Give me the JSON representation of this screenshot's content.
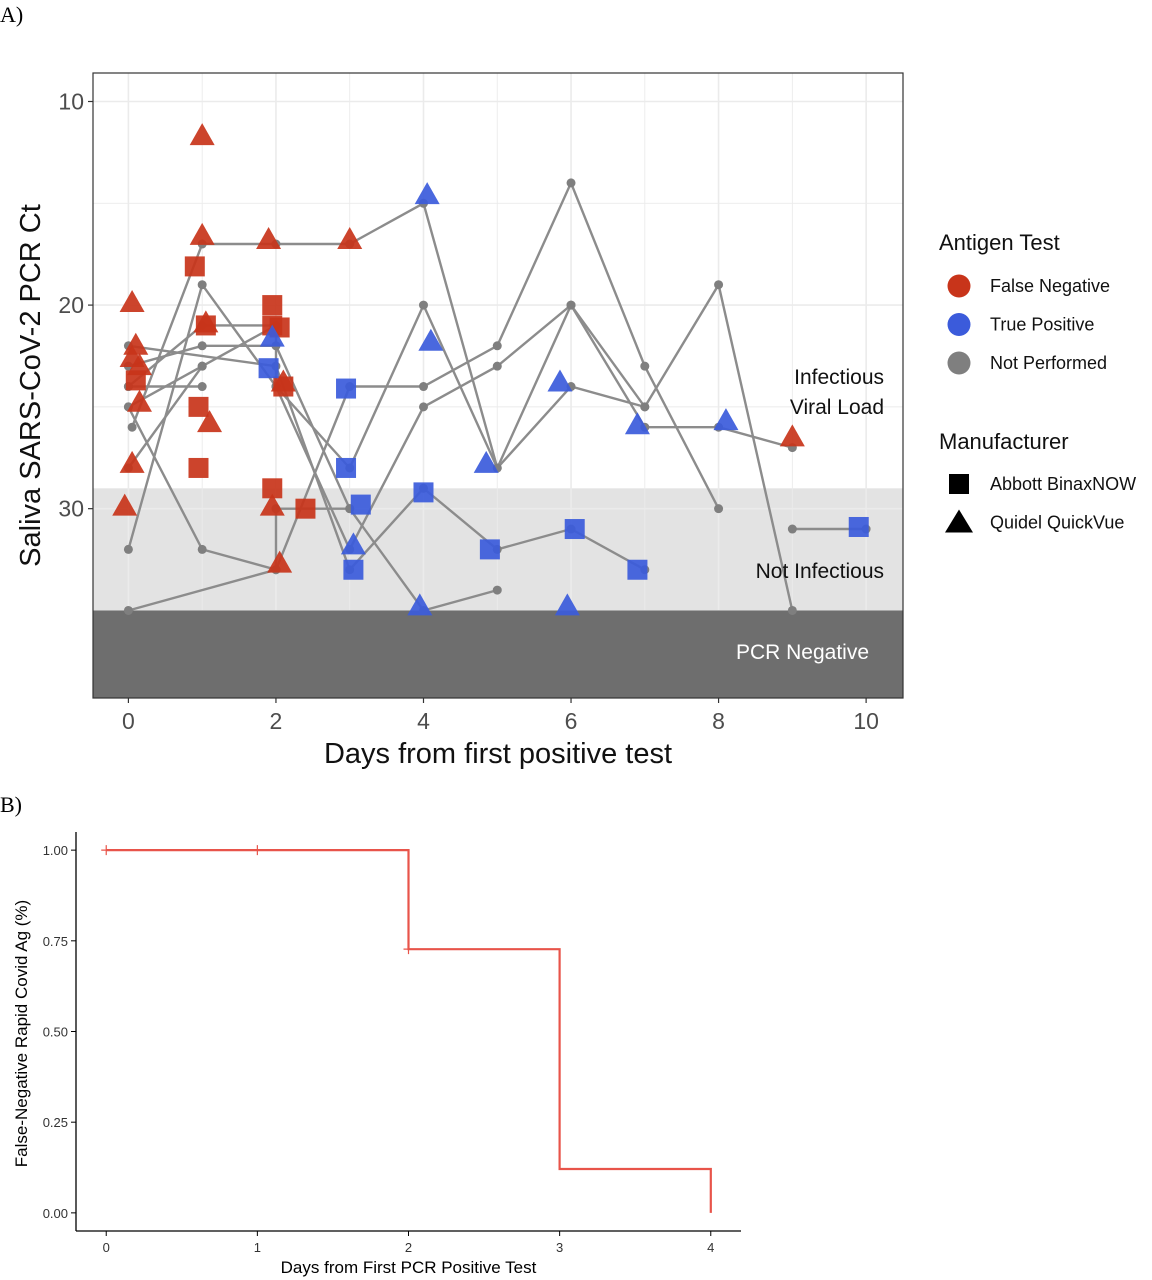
{
  "panel_labels": {
    "a": "A)",
    "b": "B)"
  },
  "colors": {
    "false_negative": "#C8341A",
    "true_positive": "#3B5BDB",
    "not_performed": "#7F7F7F",
    "line": "#8C8C8C",
    "km_curve": "#E8544A",
    "not_infectious_band": "#E3E3E3",
    "pcr_negative_band": "#6E6E6E"
  },
  "chart_data": [
    {
      "type": "scatter",
      "xlabel": "Days from first positive test",
      "ylabel": "Saliva SARS-CoV-2 PCR Ct",
      "xlim": [
        -0.48,
        10.5
      ],
      "ylim": [
        8.6,
        39.3
      ],
      "y_reversed": true,
      "x_ticks": [
        "0",
        "2",
        "4",
        "6",
        "8",
        "10"
      ],
      "x_tick_values": [
        0,
        2,
        4,
        6,
        8,
        10
      ],
      "y_ticks": [
        "10",
        "20",
        "30"
      ],
      "y_tick_values": [
        10,
        20,
        30
      ],
      "grid": true,
      "legend_position": "right",
      "regions": [
        {
          "label": "Infectious Viral Load",
          "label_lines": [
            "Infectious",
            "Viral Load"
          ],
          "from": 8.6,
          "to": 29
        },
        {
          "label": "Not Infectious",
          "from": 29,
          "to": 35
        },
        {
          "label": "PCR Negative",
          "from": 35,
          "to": 39.3
        }
      ],
      "legend": {
        "color_title": "Antigen Test",
        "color_entries": [
          {
            "label": "False Negative",
            "key": "false_negative"
          },
          {
            "label": "True Positive",
            "key": "true_positive"
          },
          {
            "label": "Not Performed",
            "key": "not_performed"
          }
        ],
        "shape_title": "Manufacturer",
        "shape_entries": [
          {
            "label": "Abbott BinaxNOW",
            "shape": "square"
          },
          {
            "label": "Quidel QuickVue",
            "shape": "triangle"
          }
        ]
      },
      "series": [
        {
          "points": [
            [
              0,
              32
            ],
            [
              1,
              19
            ],
            [
              2,
              24
            ],
            [
              3,
              28
            ],
            [
              4,
              20
            ],
            [
              5,
              28
            ],
            [
              6,
              24
            ],
            [
              7,
              25
            ]
          ]
        },
        {
          "points": [
            [
              0.05,
              26
            ],
            [
              1,
              17
            ],
            [
              2,
              17
            ],
            [
              3,
              17
            ],
            [
              4,
              15
            ],
            [
              5,
              28
            ],
            [
              6,
              20
            ],
            [
              7,
              26
            ],
            [
              8,
              26
            ],
            [
              9,
              27
            ]
          ]
        },
        {
          "points": [
            [
              0,
              35
            ],
            [
              2,
              33
            ],
            [
              3,
              24
            ],
            [
              4,
              24
            ],
            [
              5,
              22
            ],
            [
              6,
              14
            ],
            [
              7,
              23
            ],
            [
              8,
              30
            ]
          ]
        },
        {
          "points": [
            [
              0,
              22
            ],
            [
              2,
              23
            ],
            [
              3,
              33
            ],
            [
              4,
              29
            ],
            [
              5,
              32
            ],
            [
              6,
              31
            ],
            [
              7,
              33
            ]
          ]
        },
        {
          "points": [
            [
              0,
              25
            ],
            [
              1,
              32
            ],
            [
              2,
              33
            ],
            [
              2,
              30
            ],
            [
              3,
              30
            ],
            [
              4,
              35
            ],
            [
              5,
              34
            ]
          ]
        },
        {
          "points": [
            [
              0,
              24
            ],
            [
              1,
              21
            ],
            [
              2,
              21
            ],
            [
              2,
              24
            ],
            [
              3,
              32
            ],
            [
              4,
              25
            ],
            [
              5,
              23
            ],
            [
              6,
              20
            ],
            [
              7,
              25
            ],
            [
              8,
              19
            ],
            [
              9,
              35
            ]
          ]
        },
        {
          "points": [
            [
              0,
              23
            ],
            [
              1,
              22
            ],
            [
              2,
              22
            ],
            [
              3,
              30
            ]
          ]
        },
        {
          "points": [
            [
              0,
              24
            ],
            [
              1,
              24
            ]
          ]
        },
        {
          "points": [
            [
              0,
              25
            ],
            [
              1,
              23
            ],
            [
              2,
              21
            ]
          ]
        },
        {
          "points": [
            [
              0,
              28
            ],
            [
              1,
              23
            ]
          ]
        },
        {
          "points": [
            [
              9,
              31
            ],
            [
              10,
              31
            ]
          ]
        }
      ],
      "markers": [
        {
          "x": 1.0,
          "y": 11.7,
          "shape": "triangle",
          "status": "false_negative"
        },
        {
          "x": 1.0,
          "y": 16.6,
          "shape": "triangle",
          "status": "false_negative"
        },
        {
          "x": 1.9,
          "y": 16.8,
          "shape": "triangle",
          "status": "false_negative"
        },
        {
          "x": 3.0,
          "y": 16.8,
          "shape": "triangle",
          "status": "false_negative"
        },
        {
          "x": 0.05,
          "y": 19.9,
          "shape": "triangle",
          "status": "false_negative"
        },
        {
          "x": 0.1,
          "y": 22.0,
          "shape": "triangle",
          "status": "false_negative"
        },
        {
          "x": 0.05,
          "y": 22.6,
          "shape": "triangle",
          "status": "false_negative"
        },
        {
          "x": 0.15,
          "y": 23.0,
          "shape": "triangle",
          "status": "false_negative"
        },
        {
          "x": 0.15,
          "y": 24.8,
          "shape": "triangle",
          "status": "false_negative"
        },
        {
          "x": 1.05,
          "y": 20.9,
          "shape": "triangle",
          "status": "false_negative"
        },
        {
          "x": 1.1,
          "y": 25.8,
          "shape": "triangle",
          "status": "false_negative"
        },
        {
          "x": 0.05,
          "y": 27.8,
          "shape": "triangle",
          "status": "false_negative"
        },
        {
          "x": -0.05,
          "y": 29.9,
          "shape": "triangle",
          "status": "false_negative"
        },
        {
          "x": 2.1,
          "y": 23.8,
          "shape": "triangle",
          "status": "false_negative"
        },
        {
          "x": 1.95,
          "y": 29.9,
          "shape": "triangle",
          "status": "false_negative"
        },
        {
          "x": 2.05,
          "y": 32.7,
          "shape": "triangle",
          "status": "false_negative"
        },
        {
          "x": 9.0,
          "y": 26.5,
          "shape": "triangle",
          "status": "false_negative"
        },
        {
          "x": 0.1,
          "y": 23.7,
          "shape": "square",
          "status": "false_negative"
        },
        {
          "x": 0.9,
          "y": 18.1,
          "shape": "square",
          "status": "false_negative"
        },
        {
          "x": 1.05,
          "y": 21.0,
          "shape": "square",
          "status": "false_negative"
        },
        {
          "x": 0.95,
          "y": 25.0,
          "shape": "square",
          "status": "false_negative"
        },
        {
          "x": 0.95,
          "y": 28.0,
          "shape": "square",
          "status": "false_negative"
        },
        {
          "x": 1.95,
          "y": 20.0,
          "shape": "square",
          "status": "false_negative"
        },
        {
          "x": 1.95,
          "y": 21.0,
          "shape": "square",
          "status": "false_negative"
        },
        {
          "x": 2.05,
          "y": 21.1,
          "shape": "square",
          "status": "false_negative"
        },
        {
          "x": 2.1,
          "y": 24.0,
          "shape": "square",
          "status": "false_negative"
        },
        {
          "x": 1.95,
          "y": 29.0,
          "shape": "square",
          "status": "false_negative"
        },
        {
          "x": 2.4,
          "y": 30.0,
          "shape": "square",
          "status": "false_negative"
        },
        {
          "x": 1.95,
          "y": 21.6,
          "shape": "triangle",
          "status": "true_positive"
        },
        {
          "x": 4.05,
          "y": 14.6,
          "shape": "triangle",
          "status": "true_positive"
        },
        {
          "x": 4.1,
          "y": 21.8,
          "shape": "triangle",
          "status": "true_positive"
        },
        {
          "x": 4.85,
          "y": 27.8,
          "shape": "triangle",
          "status": "true_positive"
        },
        {
          "x": 3.05,
          "y": 31.8,
          "shape": "triangle",
          "status": "true_positive"
        },
        {
          "x": 3.95,
          "y": 34.8,
          "shape": "triangle",
          "status": "true_positive"
        },
        {
          "x": 5.95,
          "y": 34.8,
          "shape": "triangle",
          "status": "true_positive"
        },
        {
          "x": 5.85,
          "y": 23.8,
          "shape": "triangle",
          "status": "true_positive"
        },
        {
          "x": 6.9,
          "y": 25.9,
          "shape": "triangle",
          "status": "true_positive"
        },
        {
          "x": 8.1,
          "y": 25.7,
          "shape": "triangle",
          "status": "true_positive"
        },
        {
          "x": 1.9,
          "y": 23.1,
          "shape": "square",
          "status": "true_positive"
        },
        {
          "x": 2.95,
          "y": 24.1,
          "shape": "square",
          "status": "true_positive"
        },
        {
          "x": 2.95,
          "y": 28.0,
          "shape": "square",
          "status": "true_positive"
        },
        {
          "x": 3.15,
          "y": 29.8,
          "shape": "square",
          "status": "true_positive"
        },
        {
          "x": 3.05,
          "y": 33.0,
          "shape": "square",
          "status": "true_positive"
        },
        {
          "x": 4.0,
          "y": 29.2,
          "shape": "square",
          "status": "true_positive"
        },
        {
          "x": 4.9,
          "y": 32.0,
          "shape": "square",
          "status": "true_positive"
        },
        {
          "x": 6.05,
          "y": 31.0,
          "shape": "square",
          "status": "true_positive"
        },
        {
          "x": 6.9,
          "y": 33.0,
          "shape": "square",
          "status": "true_positive"
        },
        {
          "x": 9.9,
          "y": 30.9,
          "shape": "square",
          "status": "true_positive"
        }
      ]
    },
    {
      "type": "line",
      "step": true,
      "xlabel": "Days from First PCR Positive Test",
      "ylabel": "False-Negative Rapid Covid Ag (%)",
      "xlim": [
        -0.2,
        4.2
      ],
      "ylim": [
        -0.05,
        1.05
      ],
      "x_ticks": [
        "0",
        "1",
        "2",
        "3",
        "4"
      ],
      "x_tick_values": [
        0,
        1,
        2,
        3,
        4
      ],
      "y_ticks": [
        "0.00",
        "0.25",
        "0.50",
        "0.75",
        "1.00"
      ],
      "y_tick_values": [
        0,
        0.25,
        0.5,
        0.75,
        1.0
      ],
      "grid": false,
      "steps": [
        [
          0,
          1.0
        ],
        [
          2,
          1.0
        ],
        [
          2,
          0.727
        ],
        [
          3,
          0.727
        ],
        [
          3,
          0.121
        ],
        [
          4,
          0.121
        ],
        [
          4,
          0.0
        ]
      ],
      "censored": [
        [
          0,
          1.0
        ],
        [
          1,
          1.0
        ],
        [
          2,
          0.727
        ]
      ]
    }
  ]
}
